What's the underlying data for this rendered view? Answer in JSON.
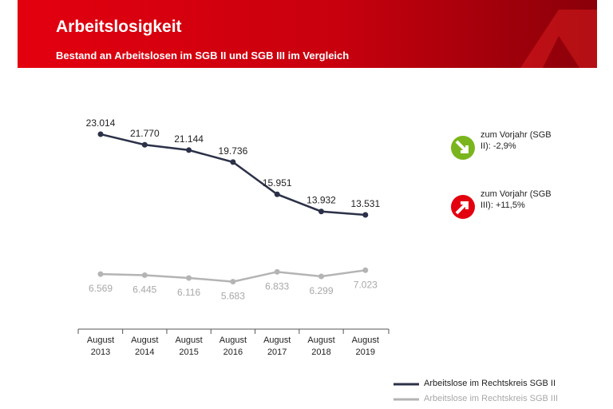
{
  "chart_data": {
    "type": "line",
    "title": "Arbeitslosigkeit",
    "subtitle": "Bestand an Arbeitslosen im SGB II und SGB III im Vergleich",
    "categories": [
      "August 2013",
      "August 2014",
      "August 2015",
      "August 2016",
      "August 2017",
      "August 2018",
      "August 2019"
    ],
    "series": [
      {
        "name": "Arbeitslose im Rechtskreis SGB II",
        "color": "#2b3148",
        "values": [
          23014,
          21770,
          21144,
          19736,
          15951,
          13932,
          13531
        ],
        "value_labels": [
          "23.014",
          "21.770",
          "21.144",
          "19.736",
          "15.951",
          "13.932",
          "13.531"
        ]
      },
      {
        "name": "Arbeitslose im Rechtskreis SGB III",
        "color": "#b4b4b4",
        "values": [
          6569,
          6445,
          6116,
          5683,
          6833,
          6299,
          7023
        ],
        "value_labels": [
          "6.569",
          "6.445",
          "6.116",
          "5.683",
          "6.833",
          "6.299",
          "7.023"
        ]
      }
    ],
    "annotations": [
      {
        "text": "zum Vorjahr (SGB II): -2,9%",
        "color": "#7ab51d"
      },
      {
        "text": "zum Vorjahr (SGB III): +11,5%",
        "color": "#e3000f"
      }
    ],
    "legend": "lower right"
  }
}
